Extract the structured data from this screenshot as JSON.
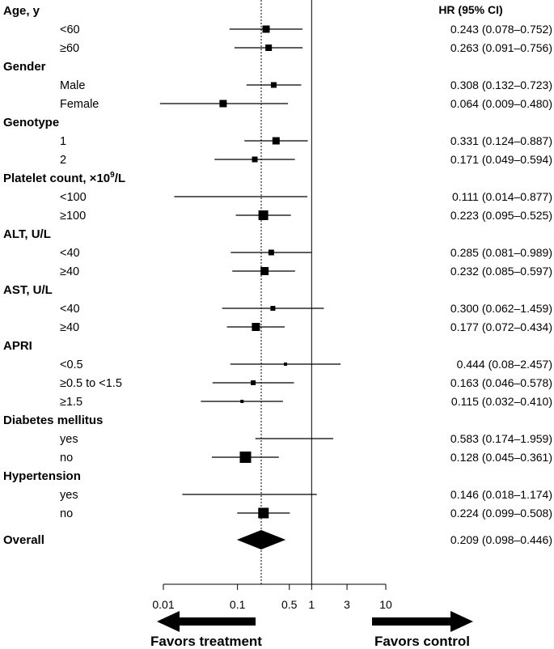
{
  "chart_data": {
    "type": "forest",
    "hr_header": "HR (95% CI)",
    "reference_value": 1,
    "overall_reference": 0.209,
    "x_scale": "log",
    "xlim": [
      0.01,
      10
    ],
    "x_ticks": [
      {
        "v": 0.01,
        "label": "0.01"
      },
      {
        "v": 0.1,
        "label": "0.1"
      },
      {
        "v": 0.5,
        "label": "0.5"
      },
      {
        "v": 1,
        "label": "1"
      },
      {
        "v": 3,
        "label": "3"
      },
      {
        "v": 10,
        "label": "10"
      }
    ],
    "favors_left": "Favors treatment",
    "favors_right": "Favors control",
    "rows": [
      {
        "kind": "group",
        "label": "Age, y"
      },
      {
        "kind": "sub",
        "label": "<60",
        "hr": 0.243,
        "lo": 0.078,
        "hi": 0.752,
        "text": "0.243 (0.078–0.752)",
        "size": 9
      },
      {
        "kind": "sub",
        "label": "≥60",
        "hr": 0.263,
        "lo": 0.091,
        "hi": 0.756,
        "text": "0.263 (0.091–0.756)",
        "size": 8
      },
      {
        "kind": "group",
        "label": "Gender"
      },
      {
        "kind": "sub",
        "label": "Male",
        "hr": 0.308,
        "lo": 0.132,
        "hi": 0.723,
        "text": "0.308 (0.132–0.723)",
        "size": 7
      },
      {
        "kind": "sub",
        "label": "Female",
        "hr": 0.064,
        "lo": 0.009,
        "hi": 0.48,
        "text": "0.064 (0.009–0.480)",
        "size": 9
      },
      {
        "kind": "group",
        "label": "Genotype"
      },
      {
        "kind": "sub",
        "label": "1",
        "hr": 0.331,
        "lo": 0.124,
        "hi": 0.887,
        "text": "0.331 (0.124–0.887)",
        "size": 9
      },
      {
        "kind": "sub",
        "label": "2",
        "hr": 0.171,
        "lo": 0.049,
        "hi": 0.594,
        "text": "0.171 (0.049–0.594)",
        "size": 7
      },
      {
        "kind": "group",
        "label": "Platelet count, ×10",
        "sup": "9",
        "suffix": "/L"
      },
      {
        "kind": "sub",
        "label": "<100",
        "hr": 0.111,
        "lo": 0.014,
        "hi": 0.877,
        "text": "0.111 (0.014–0.877)",
        "size": 0
      },
      {
        "kind": "sub",
        "label": "≥100",
        "hr": 0.223,
        "lo": 0.095,
        "hi": 0.525,
        "text": "0.223 (0.095–0.525)",
        "size": 12
      },
      {
        "kind": "group",
        "label": "ALT, U/L"
      },
      {
        "kind": "sub",
        "label": "<40",
        "hr": 0.285,
        "lo": 0.081,
        "hi": 0.989,
        "text": "0.285 (0.081–0.989)",
        "size": 7
      },
      {
        "kind": "sub",
        "label": "≥40",
        "hr": 0.232,
        "lo": 0.085,
        "hi": 0.597,
        "text": "0.232 (0.085–0.597)",
        "size": 10
      },
      {
        "kind": "group",
        "label": "AST, U/L"
      },
      {
        "kind": "sub",
        "label": "<40",
        "hr": 0.3,
        "lo": 0.062,
        "hi": 1.459,
        "text": "0.300 (0.062–1.459)",
        "size": 6
      },
      {
        "kind": "sub",
        "label": "≥40",
        "hr": 0.177,
        "lo": 0.072,
        "hi": 0.434,
        "text": "0.177 (0.072–0.434)",
        "size": 10
      },
      {
        "kind": "group",
        "label": "APRI"
      },
      {
        "kind": "sub",
        "label": "<0.5",
        "hr": 0.444,
        "lo": 0.08,
        "hi": 2.457,
        "text": "0.444 (0.08–2.457)",
        "size": 4
      },
      {
        "kind": "sub",
        "label": "≥0.5 to <1.5",
        "hr": 0.163,
        "lo": 0.046,
        "hi": 0.578,
        "text": "0.163 (0.046–0.578)",
        "size": 6
      },
      {
        "kind": "sub",
        "label": "≥1.5",
        "hr": 0.115,
        "lo": 0.032,
        "hi": 0.41,
        "text": "0.115 (0.032–0.410)",
        "size": 4
      },
      {
        "kind": "group",
        "label": "Diabetes mellitus"
      },
      {
        "kind": "sub",
        "label": "yes",
        "hr": 0.583,
        "lo": 0.174,
        "hi": 1.959,
        "text": "0.583 (0.174–1.959)",
        "size": 0
      },
      {
        "kind": "sub",
        "label": "no",
        "hr": 0.128,
        "lo": 0.045,
        "hi": 0.361,
        "text": "0.128 (0.045–0.361)",
        "size": 14
      },
      {
        "kind": "group",
        "label": "Hypertension"
      },
      {
        "kind": "sub",
        "label": "yes",
        "hr": 0.146,
        "lo": 0.018,
        "hi": 1.174,
        "text": "0.146 (0.018–1.174)",
        "size": 0
      },
      {
        "kind": "sub",
        "label": "no",
        "hr": 0.224,
        "lo": 0.099,
        "hi": 0.508,
        "text": "0.224 (0.099–0.508)",
        "size": 13
      },
      {
        "kind": "overall",
        "label": "Overall",
        "hr": 0.209,
        "lo": 0.098,
        "hi": 0.446,
        "text": "0.209 (0.098–0.446)"
      }
    ]
  }
}
